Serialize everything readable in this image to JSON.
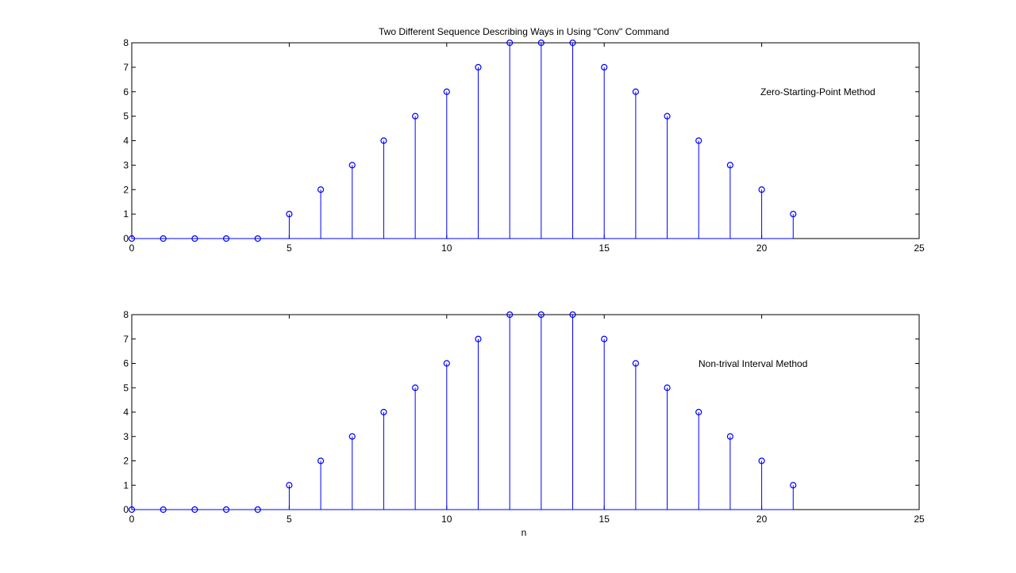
{
  "chart_data": [
    {
      "type": "stem",
      "title": "Two Different Sequence Describing Ways in Using \"Conv\" Command",
      "xlabel": "",
      "ylabel": "",
      "xlim": [
        0,
        25
      ],
      "ylim": [
        0,
        8
      ],
      "xticks": [
        0,
        5,
        10,
        15,
        20,
        25
      ],
      "yticks": [
        0,
        1,
        2,
        3,
        4,
        5,
        6,
        7,
        8
      ],
      "grid": false,
      "annotation": "Zero-Starting-Point Method",
      "x": [
        0,
        1,
        2,
        3,
        4,
        5,
        6,
        7,
        8,
        9,
        10,
        11,
        12,
        13,
        14,
        15,
        16,
        17,
        18,
        19,
        20,
        21
      ],
      "y": [
        0,
        0,
        0,
        0,
        0,
        1,
        2,
        3,
        4,
        5,
        6,
        7,
        8,
        8,
        8,
        7,
        6,
        5,
        4,
        3,
        2,
        1
      ]
    },
    {
      "type": "stem",
      "title": "",
      "xlabel": "n",
      "ylabel": "",
      "xlim": [
        0,
        25
      ],
      "ylim": [
        0,
        8
      ],
      "xticks": [
        0,
        5,
        10,
        15,
        20,
        25
      ],
      "yticks": [
        0,
        1,
        2,
        3,
        4,
        5,
        6,
        7,
        8
      ],
      "grid": false,
      "annotation": "Non-trival Interval Method",
      "x": [
        0,
        1,
        2,
        3,
        4,
        5,
        6,
        7,
        8,
        9,
        10,
        11,
        12,
        13,
        14,
        15,
        16,
        17,
        18,
        19,
        20,
        21
      ],
      "y": [
        0,
        0,
        0,
        0,
        0,
        1,
        2,
        3,
        4,
        5,
        6,
        7,
        8,
        8,
        8,
        7,
        6,
        5,
        4,
        3,
        2,
        1
      ]
    }
  ],
  "colors": {
    "stem": "#0000ff",
    "axes": "#000000",
    "background": "#ffffff"
  }
}
